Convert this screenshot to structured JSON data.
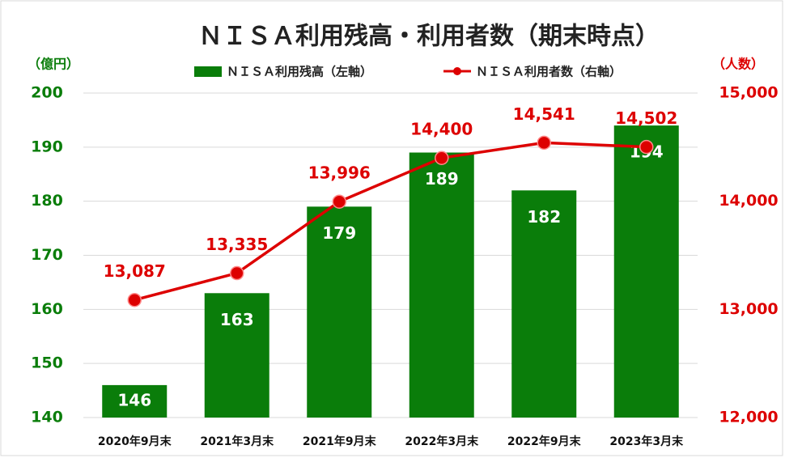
{
  "chart_data": {
    "type": "bar-line",
    "title": "ＮＩＳＡ利用残高・利用者数（期末時点）",
    "y_label": "（億円）",
    "y2_label": "（人数）",
    "categories": [
      "2020年9月末",
      "2021年3月末",
      "2021年9月末",
      "2022年3月末",
      "2022年9月末",
      "2023年3月末"
    ],
    "series": [
      {
        "name": "ＮＩＳＡ利用残高（左軸）",
        "type": "bar",
        "color": "#0a7d0a",
        "values": [
          146,
          163,
          179,
          189,
          182,
          194
        ]
      },
      {
        "name": "ＮＩＳＡ利用者数（右軸）",
        "type": "line",
        "axis": "y2",
        "color": "#dd0000",
        "values": [
          13087,
          13335,
          13996,
          14400,
          14541,
          14502
        ],
        "value_labels": [
          "13,087",
          "13,335",
          "13,996",
          "14,400",
          "14,541",
          "14,502"
        ]
      }
    ],
    "ylim": [
      140,
      200
    ],
    "yticks": [
      140,
      150,
      160,
      170,
      180,
      190,
      200
    ],
    "y2lim": [
      12000,
      15000
    ],
    "y2ticks": [
      {
        "value": 12000,
        "label": "12,000"
      },
      {
        "value": 13000,
        "label": "13,000"
      },
      {
        "value": 14000,
        "label": "14,000"
      },
      {
        "value": 15000,
        "label": "15,000"
      }
    ],
    "grid": true
  }
}
